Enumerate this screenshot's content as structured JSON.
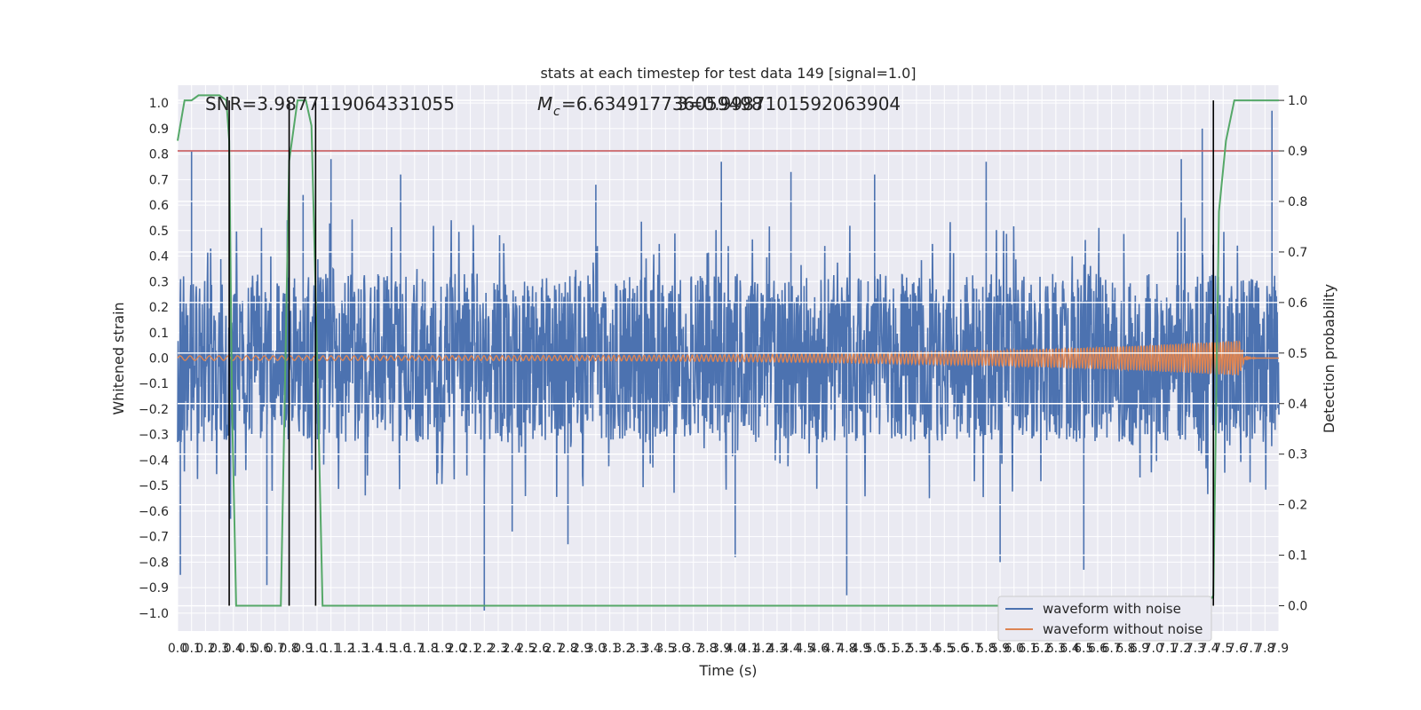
{
  "chart_data": {
    "type": "line",
    "title": "stats at each timestep for test data 149 [signal=1.0]",
    "xlabel": "Time (s)",
    "ylabel": "Whitened strain",
    "ylabel_right": "Detection probability",
    "xlim": [
      0.0,
      7.9
    ],
    "ylim": [
      -1.07,
      1.07
    ],
    "ylim_right": [
      -0.05,
      1.03
    ],
    "x_ticks": [
      0.0,
      0.1,
      0.2,
      0.3,
      0.4,
      0.5,
      0.6,
      0.7,
      0.8,
      0.9,
      1.0,
      1.1,
      1.2,
      1.3,
      1.4,
      1.5,
      1.6,
      1.7,
      1.8,
      1.9,
      2.0,
      2.1,
      2.2,
      2.3,
      2.4,
      2.5,
      2.6,
      2.7,
      2.8,
      2.9,
      3.0,
      3.1,
      3.2,
      3.3,
      3.4,
      3.5,
      3.6,
      3.7,
      3.8,
      3.9,
      4.0,
      4.1,
      4.2,
      4.3,
      4.4,
      4.5,
      4.6,
      4.7,
      4.8,
      4.9,
      5.0,
      5.1,
      5.2,
      5.3,
      5.4,
      5.5,
      5.6,
      5.7,
      5.8,
      5.9,
      6.0,
      6.1,
      6.2,
      6.3,
      6.4,
      6.5,
      6.6,
      6.7,
      6.8,
      6.9,
      7.0,
      7.1,
      7.2,
      7.3,
      7.4,
      7.5,
      7.6,
      7.7,
      7.8,
      7.9
    ],
    "y_ticks": [
      1.0,
      0.9,
      0.8,
      0.7,
      0.6,
      0.5,
      0.4,
      0.3,
      0.2,
      0.1,
      0.0,
      -0.1,
      -0.2,
      -0.3,
      -0.4,
      -0.5,
      -0.6,
      -0.7,
      -0.8,
      -0.9,
      -1.0
    ],
    "y_ticks_right": [
      1.0,
      0.9,
      0.8,
      0.7,
      0.6,
      0.5,
      0.4,
      0.3,
      0.2,
      0.1,
      0.0
    ],
    "annotations": {
      "snr": "SNR=3.9877119064331055",
      "mc": "=6.634917736059498",
      "mc_symbol": "M",
      "mc_subscript": "c",
      "overlap": "3=0.99871015920639 04",
      "overlap_text": "3=0.9987101592063904"
    },
    "series": [
      {
        "name": "waveform with noise",
        "color": "#4c72b0",
        "description_values": "dense noise, mostly within ±0.55, spikes to 0.81 at x=0.1 and 0.90 at x=7.35, min -0.99 at x=2.2",
        "spikes": [
          [
            0.02,
            -0.85
          ],
          [
            0.1,
            0.81
          ],
          [
            0.38,
            -0.63
          ],
          [
            0.64,
            -0.89
          ],
          [
            0.9,
            0.64
          ],
          [
            1.1,
            0.78
          ],
          [
            1.6,
            0.72
          ],
          [
            2.2,
            -0.99
          ],
          [
            2.4,
            -0.68
          ],
          [
            2.8,
            -0.73
          ],
          [
            3.0,
            0.68
          ],
          [
            3.9,
            0.77
          ],
          [
            4.0,
            -0.78
          ],
          [
            4.4,
            0.73
          ],
          [
            4.8,
            -0.93
          ],
          [
            5.0,
            0.72
          ],
          [
            5.8,
            0.77
          ],
          [
            5.9,
            -0.8
          ],
          [
            6.5,
            -0.83
          ],
          [
            7.2,
            0.78
          ],
          [
            7.35,
            0.9
          ],
          [
            7.85,
            0.97
          ]
        ]
      },
      {
        "name": "waveform without noise",
        "color": "#dd8452",
        "description_values": "chirp: amplitude ~0.01 until t≈4, growing to ~0.07 at t=7.6, then ringdown"
      },
      {
        "name": "",
        "color": "#55a868",
        "axis": "right",
        "points": [
          [
            0.0,
            0.92
          ],
          [
            0.05,
            1.0
          ],
          [
            0.1,
            1.0
          ],
          [
            0.15,
            1.01
          ],
          [
            0.2,
            1.01
          ],
          [
            0.25,
            1.01
          ],
          [
            0.3,
            1.01
          ],
          [
            0.35,
            1.0
          ],
          [
            0.37,
            0.92
          ],
          [
            0.39,
            0.4
          ],
          [
            0.42,
            0.0
          ],
          [
            0.5,
            0.0
          ],
          [
            0.6,
            0.0
          ],
          [
            0.7,
            0.0
          ],
          [
            0.74,
            0.0
          ],
          [
            0.8,
            0.88
          ],
          [
            0.86,
            1.0
          ],
          [
            0.92,
            1.0
          ],
          [
            0.96,
            0.95
          ],
          [
            0.99,
            0.62
          ],
          [
            1.04,
            0.0
          ],
          [
            1.5,
            0.0
          ],
          [
            3.0,
            0.0
          ],
          [
            5.0,
            0.0
          ],
          [
            6.0,
            0.0
          ],
          [
            7.0,
            0.0
          ],
          [
            7.38,
            0.0
          ],
          [
            7.43,
            0.02
          ],
          [
            7.47,
            0.78
          ],
          [
            7.52,
            0.92
          ],
          [
            7.58,
            1.0
          ],
          [
            7.65,
            1.0
          ],
          [
            7.72,
            1.0
          ],
          [
            7.78,
            1.0
          ],
          [
            7.85,
            1.0
          ],
          [
            7.9,
            1.0
          ]
        ]
      }
    ],
    "threshold_line": {
      "y_right": 0.9,
      "color": "#c44e52"
    },
    "vertical_lines_x": [
      0.37,
      0.8,
      0.99,
      7.43
    ],
    "vertical_line_color": "#000000",
    "background": "#eaeaf2",
    "grid": true,
    "legend": {
      "location": "lower right",
      "entries": [
        "waveform with noise",
        "waveform without noise"
      ]
    }
  }
}
